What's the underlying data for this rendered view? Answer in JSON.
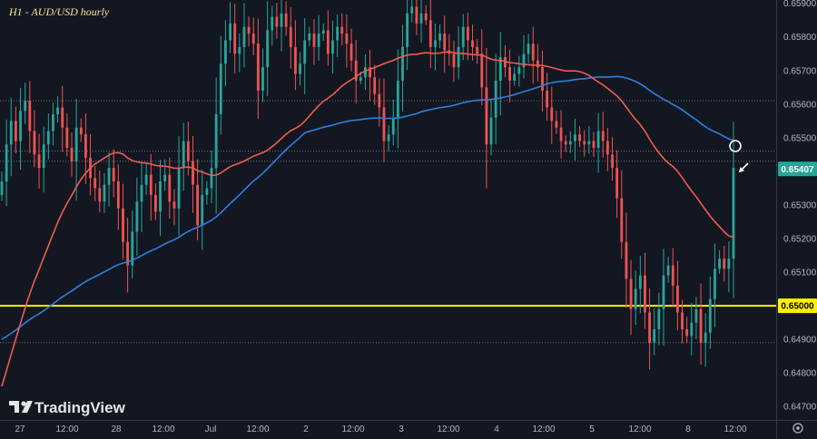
{
  "chart_data": {
    "type": "candlestick",
    "title": "H1 - AUD/USD hourly",
    "brand": "TradingView",
    "y_ticks": [
      "0.65900",
      "0.65800",
      "0.65700",
      "0.65600",
      "0.65500",
      "0.65407",
      "0.65300",
      "0.65200",
      "0.65100",
      "0.65000",
      "0.64900",
      "0.64800",
      "0.64700"
    ],
    "y_tick_values": [
      0.659,
      0.658,
      0.657,
      0.656,
      0.655,
      0.65407,
      0.653,
      0.652,
      0.651,
      0.65,
      0.649,
      0.648,
      0.647
    ],
    "ylim": [
      0.6466,
      0.6591
    ],
    "x_ticks": [
      "27",
      "12:00",
      "28",
      "12:00",
      "Jul",
      "12:00",
      "2",
      "12:00",
      "3",
      "12:00",
      "4",
      "12:00",
      "5",
      "12:00",
      "8",
      "12:00"
    ],
    "current_price": 0.65407,
    "key_level": 0.65,
    "dotted_levels": [
      0.6561,
      0.6546,
      0.6543,
      0.6489
    ],
    "colors": {
      "background": "#131722",
      "up": "#26a69a",
      "down": "#ef5350",
      "ma_red": "#f15b50",
      "ma_blue": "#2f7fe0",
      "key_level": "#ffee00",
      "price_tag": "#26a69a"
    },
    "closes": [
      0.6537,
      0.6548,
      0.6555,
      0.6549,
      0.6558,
      0.6561,
      0.6552,
      0.6545,
      0.6541,
      0.6548,
      0.6552,
      0.6557,
      0.6559,
      0.6553,
      0.6547,
      0.6543,
      0.6553,
      0.6551,
      0.6544,
      0.6538,
      0.6535,
      0.6531,
      0.6536,
      0.6541,
      0.6537,
      0.6529,
      0.6519,
      0.6512,
      0.6522,
      0.6531,
      0.6536,
      0.6539,
      0.6533,
      0.6528,
      0.6537,
      0.6539,
      0.6531,
      0.6529,
      0.6541,
      0.6549,
      0.6543,
      0.6536,
      0.6524,
      0.6533,
      0.6535,
      0.6541,
      0.6557,
      0.6572,
      0.6579,
      0.6584,
      0.6575,
      0.6577,
      0.6583,
      0.6581,
      0.6578,
      0.6564,
      0.6571,
      0.6582,
      0.6586,
      0.6583,
      0.6587,
      0.6583,
      0.6577,
      0.6569,
      0.6572,
      0.6579,
      0.6581,
      0.6577,
      0.6581,
      0.6582,
      0.6575,
      0.6579,
      0.6583,
      0.6581,
      0.6578,
      0.6573,
      0.6567,
      0.6568,
      0.6571,
      0.6568,
      0.6563,
      0.6559,
      0.6549,
      0.6551,
      0.6556,
      0.6567,
      0.6577,
      0.6587,
      0.6589,
      0.6584,
      0.6587,
      0.6585,
      0.6577,
      0.6579,
      0.6581,
      0.6576,
      0.6575,
      0.6571,
      0.6577,
      0.6583,
      0.6579,
      0.6577,
      0.6575,
      0.6565,
      0.6548,
      0.6556,
      0.6567,
      0.6574,
      0.6571,
      0.6567,
      0.6569,
      0.6571,
      0.6575,
      0.6578,
      0.6573,
      0.6571,
      0.6564,
      0.6559,
      0.6555,
      0.6553,
      0.6549,
      0.6548,
      0.6549,
      0.6551,
      0.6549,
      0.6548,
      0.6549,
      0.6547,
      0.6552,
      0.6549,
      0.6545,
      0.6541,
      0.6532,
      0.6519,
      0.6508,
      0.6499,
      0.6505,
      0.6509,
      0.6498,
      0.6489,
      0.6493,
      0.6499,
      0.6509,
      0.6512,
      0.6506,
      0.6498,
      0.6493,
      0.6491,
      0.6495,
      0.6499,
      0.6489,
      0.6492,
      0.6502,
      0.6511,
      0.6514,
      0.6511,
      0.6514,
      0.6541
    ]
  }
}
